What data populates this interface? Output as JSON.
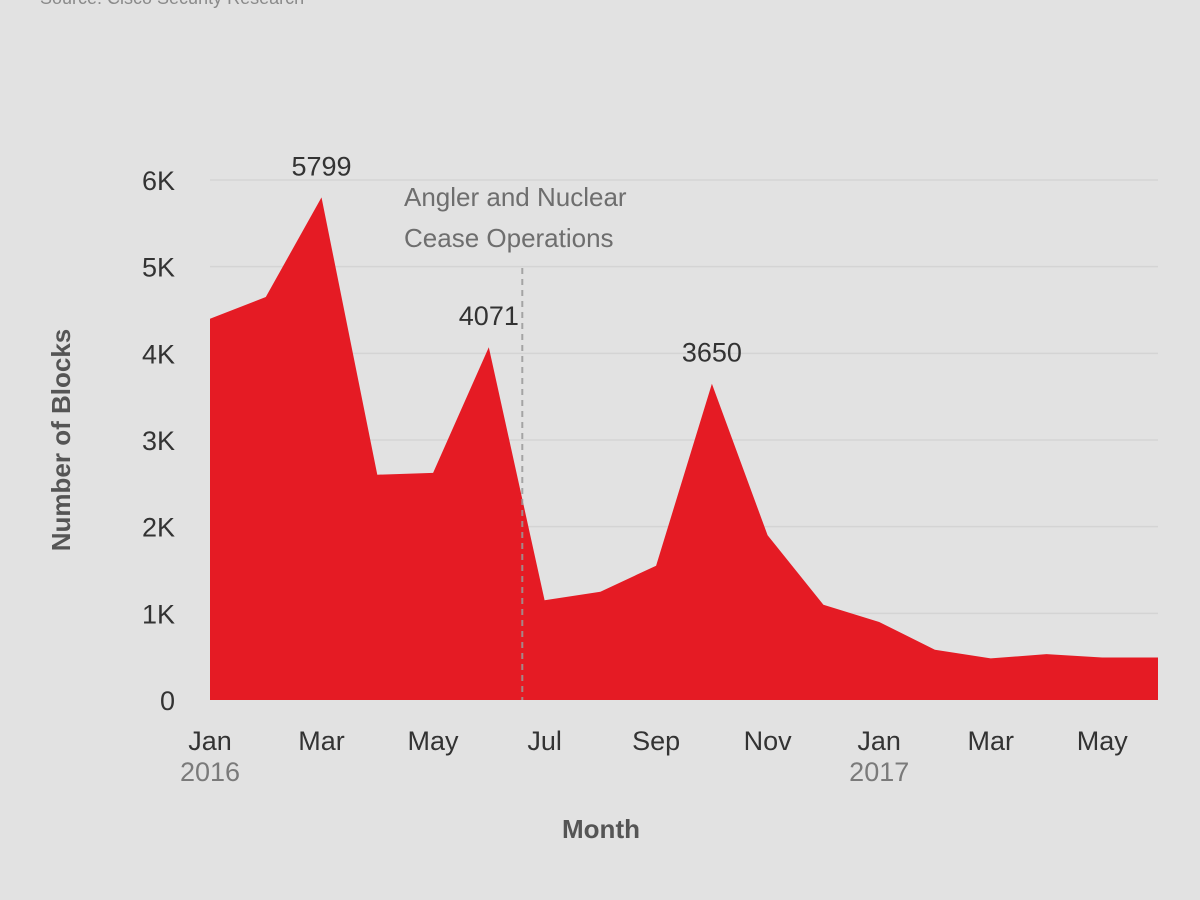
{
  "source_note": "Source: Cisco Security Research",
  "chart_data": {
    "type": "area",
    "xlabel": "Month",
    "ylabel": "Number of Blocks",
    "ylim": [
      0,
      6000
    ],
    "yticks": [
      {
        "value": 0,
        "label": "0"
      },
      {
        "value": 1000,
        "label": "1K"
      },
      {
        "value": 2000,
        "label": "2K"
      },
      {
        "value": 3000,
        "label": "3K"
      },
      {
        "value": 4000,
        "label": "4K"
      },
      {
        "value": 5000,
        "label": "5K"
      },
      {
        "value": 6000,
        "label": "6K"
      }
    ],
    "x": [
      "2016-01",
      "2016-02",
      "2016-03",
      "2016-04",
      "2016-05",
      "2016-06",
      "2016-07",
      "2016-08",
      "2016-09",
      "2016-10",
      "2016-11",
      "2016-12",
      "2017-01",
      "2017-02",
      "2017-03",
      "2017-04",
      "2017-05",
      "2017-06"
    ],
    "xticks": [
      {
        "at": "2016-01",
        "label": "Jan",
        "year": "2016"
      },
      {
        "at": "2016-03",
        "label": "Mar",
        "year": ""
      },
      {
        "at": "2016-05",
        "label": "May",
        "year": ""
      },
      {
        "at": "2016-07",
        "label": "Jul",
        "year": ""
      },
      {
        "at": "2016-09",
        "label": "Sep",
        "year": ""
      },
      {
        "at": "2016-11",
        "label": "Nov",
        "year": ""
      },
      {
        "at": "2017-01",
        "label": "Jan",
        "year": "2017"
      },
      {
        "at": "2017-03",
        "label": "Mar",
        "year": ""
      },
      {
        "at": "2017-05",
        "label": "May",
        "year": ""
      }
    ],
    "series": [
      {
        "values": [
          4400,
          4650,
          5799,
          2600,
          2620,
          4071,
          1150,
          1250,
          1550,
          3650,
          1900,
          1100,
          900,
          580,
          480,
          530,
          490,
          490
        ]
      }
    ],
    "data_labels": [
      {
        "index": 2,
        "text": "5799"
      },
      {
        "index": 5,
        "text": "4071"
      },
      {
        "index": 9,
        "text": "3650"
      }
    ],
    "event_marker": {
      "at": "2016-06-19",
      "label_lines": [
        "Angler and Nuclear",
        "Cease Operations"
      ]
    },
    "grid": true,
    "colors": {
      "fill": "#e51b24",
      "grid": "#d4d4d4",
      "tick_text": "#333333",
      "axis_title": "#555555",
      "annotation": "#6e6e6e",
      "year_text": "#7a7a7a"
    }
  }
}
